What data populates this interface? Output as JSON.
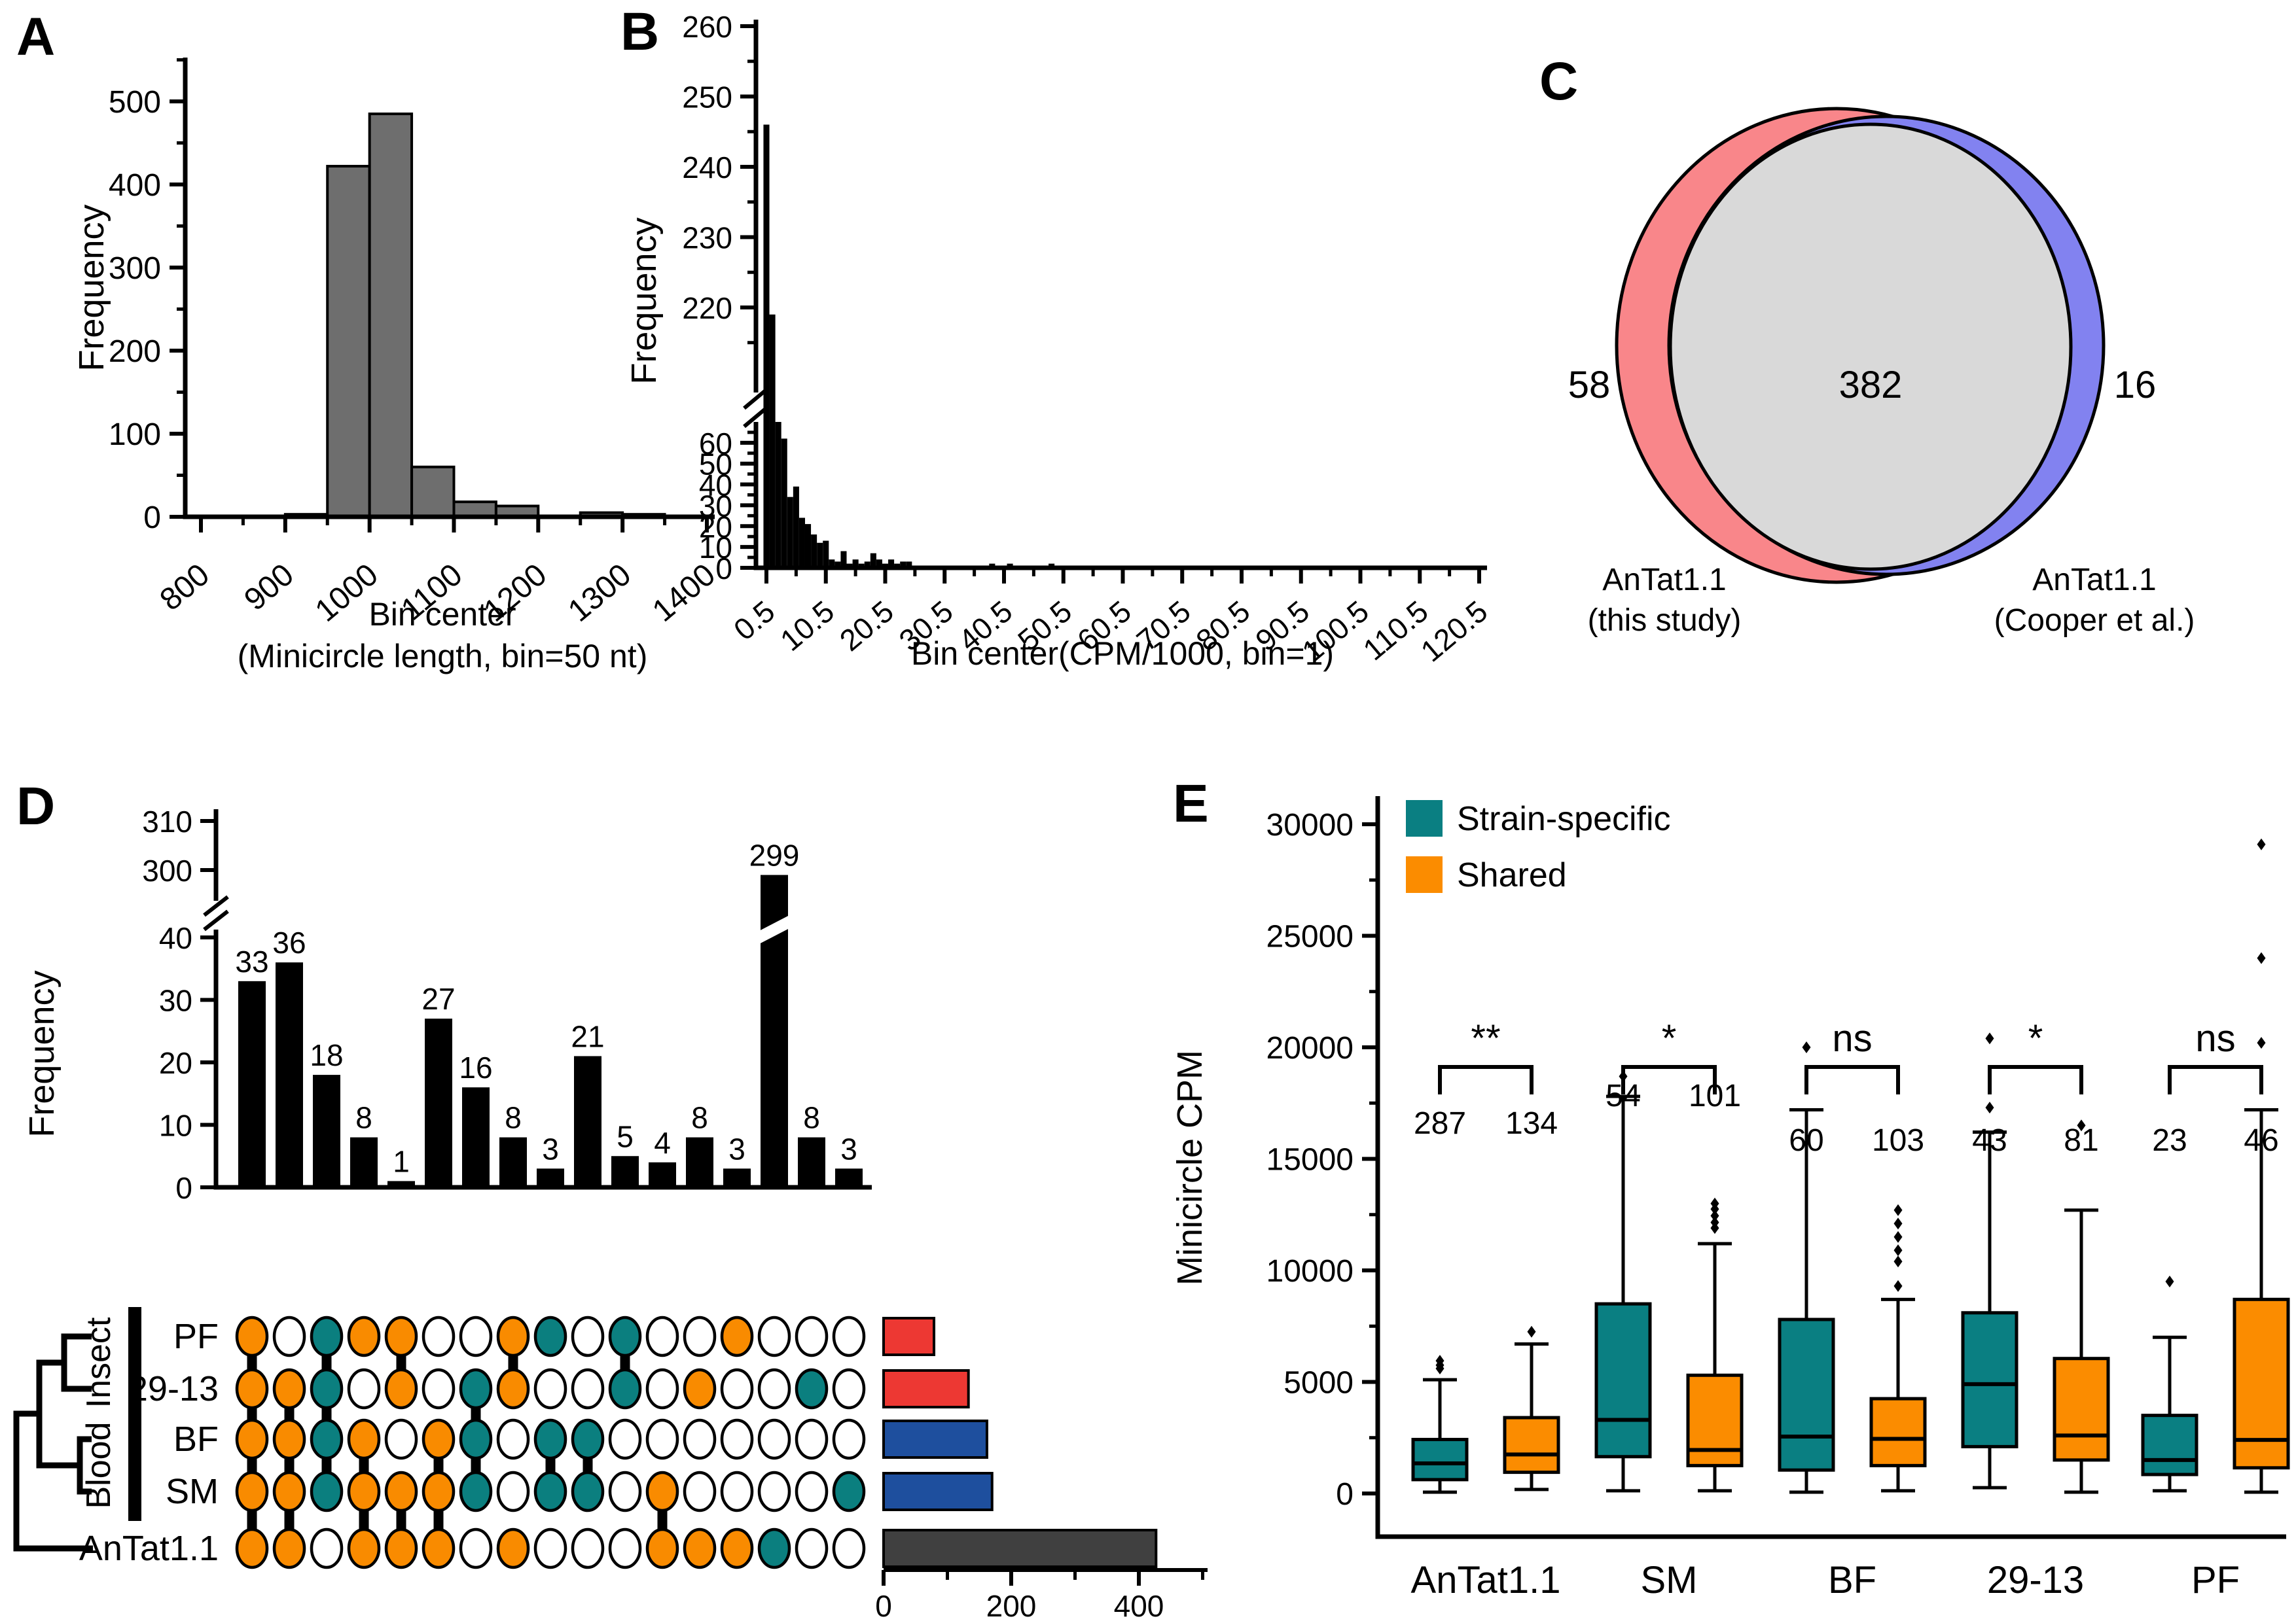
{
  "panels": {
    "a": "A",
    "b": "B",
    "c": "C",
    "d": "D",
    "e": "E"
  },
  "chart_data": [
    {
      "panel": "A",
      "type": "bar",
      "ylabel": "Frequency",
      "xlabel_lines": [
        "Bin center",
        "(Minicircle length, bin=50 nt)"
      ],
      "bin_width": 50,
      "bin_centers": [
        875,
        925,
        975,
        1025,
        1075,
        1125,
        1175,
        1225,
        1275,
        1325
      ],
      "values": [
        0,
        3,
        422,
        485,
        60,
        18,
        13,
        0,
        5,
        3
      ],
      "xticks": [
        800,
        900,
        1000,
        1100,
        1200,
        1300,
        1400
      ],
      "yticks": [
        0,
        100,
        200,
        300,
        400,
        500
      ],
      "ylim": [
        0,
        550
      ],
      "bar_color": "#6e6e6e"
    },
    {
      "panel": "B",
      "type": "bar",
      "ylabel": "Frequency",
      "xlabel": "Bin center(CPM/1000, bin=1)",
      "axis_break": {
        "lower_max": 70,
        "upper_min": 210,
        "upper_max": 260
      },
      "xticks": [
        0.5,
        10.5,
        20.5,
        30.5,
        40.5,
        50.5,
        60.5,
        70.5,
        80.5,
        90.5,
        100.5,
        110.5,
        120.5
      ],
      "yticks_upper": [
        220,
        230,
        240,
        250,
        260
      ],
      "yticks_lower": [
        0,
        10,
        20,
        30,
        40,
        50,
        60
      ],
      "bars": [
        [
          0.5,
          246
        ],
        [
          1.5,
          219
        ],
        [
          2.5,
          70
        ],
        [
          3.5,
          62
        ],
        [
          4.5,
          34
        ],
        [
          5.5,
          39
        ],
        [
          6.5,
          24
        ],
        [
          7.5,
          21
        ],
        [
          8.5,
          16
        ],
        [
          9.5,
          12
        ],
        [
          10.5,
          13
        ],
        [
          11.5,
          4
        ],
        [
          12.5,
          3
        ],
        [
          13.5,
          8
        ],
        [
          14.5,
          2
        ],
        [
          15.5,
          4
        ],
        [
          16.5,
          2
        ],
        [
          17.5,
          3
        ],
        [
          18.5,
          7
        ],
        [
          19.5,
          4
        ],
        [
          20.5,
          2
        ],
        [
          21.5,
          4
        ],
        [
          22.5,
          2
        ],
        [
          23.5,
          3
        ],
        [
          24.5,
          3
        ],
        [
          25.5,
          1
        ],
        [
          26.5,
          1
        ],
        [
          27.5,
          1
        ],
        [
          29.5,
          1
        ],
        [
          31.5,
          1
        ],
        [
          33.5,
          1
        ],
        [
          35.5,
          1
        ],
        [
          38.5,
          2
        ],
        [
          40.5,
          1
        ],
        [
          41.5,
          2
        ],
        [
          44.5,
          1
        ],
        [
          45.5,
          1
        ],
        [
          48.5,
          2
        ],
        [
          49.5,
          1
        ],
        [
          50.5,
          1
        ],
        [
          52.5,
          1
        ],
        [
          61.5,
          1
        ],
        [
          82.5,
          1
        ],
        [
          90.5,
          1
        ],
        [
          100.5,
          1
        ],
        [
          120.5,
          1
        ]
      ],
      "bar_color": "#000000"
    },
    {
      "panel": "C",
      "type": "venn",
      "left_only": 58,
      "overlap": 382,
      "right_only": 16,
      "left_label_lines": [
        "AnTat1.1",
        "(this study)"
      ],
      "right_label_lines": [
        "AnTat1.1",
        "(Cooper et al.)"
      ],
      "left_color": "#f9868a",
      "right_color": "#8282f0",
      "overlap_color": "#d9d9d9"
    },
    {
      "panel": "D",
      "type": "upset",
      "ylabel": "Frequency",
      "yticks_lower": [
        0,
        10,
        20,
        30,
        40
      ],
      "yticks_upper": [
        300,
        310
      ],
      "sets": [
        "PF",
        "29-13",
        "BF",
        "SM",
        "AnTat1.1"
      ],
      "groups": [
        {
          "label": "Insect",
          "members": [
            "PF",
            "29-13"
          ]
        },
        {
          "label": "Blood",
          "members": [
            "BF",
            "SM"
          ]
        }
      ],
      "set_sizes": [
        79,
        133,
        162,
        170,
        427
      ],
      "set_colors": [
        "#ed3833",
        "#ed3833",
        "#1e4f9e",
        "#1e4f9e",
        "#404040"
      ],
      "size_axis_ticks": [
        0,
        200,
        400
      ],
      "dot_shared_color": "#f98b00",
      "dot_specific_color": "#0b7f7f",
      "intersections": [
        {
          "value": 33,
          "members": [
            1,
            1,
            1,
            1,
            1
          ],
          "category": "shared"
        },
        {
          "value": 36,
          "members": [
            0,
            1,
            1,
            1,
            1
          ],
          "category": "shared"
        },
        {
          "value": 18,
          "members": [
            1,
            1,
            1,
            1,
            0
          ],
          "category": "specific"
        },
        {
          "value": 8,
          "members": [
            1,
            0,
            1,
            1,
            1
          ],
          "category": "shared"
        },
        {
          "value": 1,
          "members": [
            1,
            1,
            0,
            1,
            1
          ],
          "category": "shared"
        },
        {
          "value": 27,
          "members": [
            0,
            0,
            1,
            1,
            1
          ],
          "category": "shared"
        },
        {
          "value": 16,
          "members": [
            0,
            1,
            1,
            1,
            0
          ],
          "category": "specific"
        },
        {
          "value": 8,
          "members": [
            1,
            1,
            0,
            0,
            1
          ],
          "category": "shared"
        },
        {
          "value": 3,
          "members": [
            1,
            0,
            1,
            1,
            0
          ],
          "category": "specific"
        },
        {
          "value": 21,
          "members": [
            0,
            0,
            1,
            1,
            0
          ],
          "category": "specific"
        },
        {
          "value": 5,
          "members": [
            1,
            1,
            0,
            0,
            0
          ],
          "category": "specific"
        },
        {
          "value": 4,
          "members": [
            0,
            0,
            0,
            1,
            1
          ],
          "category": "shared"
        },
        {
          "value": 8,
          "members": [
            0,
            1,
            0,
            0,
            1
          ],
          "category": "shared"
        },
        {
          "value": 3,
          "members": [
            1,
            0,
            0,
            0,
            1
          ],
          "category": "shared"
        },
        {
          "value": 299,
          "members": [
            0,
            0,
            0,
            0,
            1
          ],
          "category": "specific"
        },
        {
          "value": 8,
          "members": [
            0,
            1,
            0,
            0,
            0
          ],
          "category": "specific"
        },
        {
          "value": 3,
          "members": [
            0,
            0,
            0,
            1,
            0
          ],
          "category": "specific"
        }
      ]
    },
    {
      "panel": "E",
      "type": "box",
      "ylabel": "Minicircle CPM",
      "yticks": [
        0,
        5000,
        10000,
        15000,
        20000,
        25000,
        30000
      ],
      "legend": [
        {
          "label": "Strain-specific",
          "color": "#0a7f82"
        },
        {
          "label": "Shared",
          "color": "#fb8c00"
        }
      ],
      "categories": [
        "AnTat1.1",
        "SM",
        "BF",
        "29-13",
        "PF"
      ],
      "groups": [
        {
          "category": "AnTat1.1",
          "significance": "**",
          "strain_specific": {
            "n": 287,
            "lo": 60,
            "q1": 620,
            "med": 1350,
            "q3": 2420,
            "hi": 5100,
            "outliers": [
              5600,
              5750,
              5950
            ]
          },
          "shared": {
            "n": 134,
            "lo": 180,
            "q1": 950,
            "med": 1750,
            "q3": 3400,
            "hi": 6700,
            "outliers": [
              7250
            ]
          }
        },
        {
          "category": "SM",
          "significance": "*",
          "strain_specific": {
            "n": 54,
            "lo": 120,
            "q1": 1650,
            "med": 3300,
            "q3": 8500,
            "hi": 17800,
            "outliers": [
              18700
            ]
          },
          "shared": {
            "n": 101,
            "lo": 120,
            "q1": 1250,
            "med": 1950,
            "q3": 5300,
            "hi": 11200,
            "outliers": [
              11900,
              12150,
              12450,
              12750,
              13000
            ]
          }
        },
        {
          "category": "BF",
          "significance": "ns",
          "strain_specific": {
            "n": 60,
            "lo": 60,
            "q1": 1050,
            "med": 2550,
            "q3": 7800,
            "hi": 17200,
            "outliers": [
              20000
            ]
          },
          "shared": {
            "n": 103,
            "lo": 120,
            "q1": 1250,
            "med": 2450,
            "q3": 4250,
            "hi": 8700,
            "outliers": [
              9300,
              10400,
              10900,
              11500,
              12100,
              12700
            ]
          }
        },
        {
          "category": "29-13",
          "significance": "*",
          "strain_specific": {
            "n": 43,
            "lo": 260,
            "q1": 2100,
            "med": 4900,
            "q3": 8100,
            "hi": 16200,
            "outliers": [
              17300,
              20400
            ]
          },
          "shared": {
            "n": 81,
            "lo": 60,
            "q1": 1500,
            "med": 2600,
            "q3": 6050,
            "hi": 12700,
            "outliers": [
              16500
            ]
          }
        },
        {
          "category": "PF",
          "significance": "ns",
          "strain_specific": {
            "n": 23,
            "lo": 120,
            "q1": 850,
            "med": 1500,
            "q3": 3500,
            "hi": 7000,
            "outliers": [
              9500
            ]
          },
          "shared": {
            "n": 46,
            "lo": 60,
            "q1": 1150,
            "med": 2400,
            "q3": 8700,
            "hi": 17200,
            "outliers": [
              20200,
              24000,
              29100
            ]
          }
        }
      ]
    }
  ]
}
